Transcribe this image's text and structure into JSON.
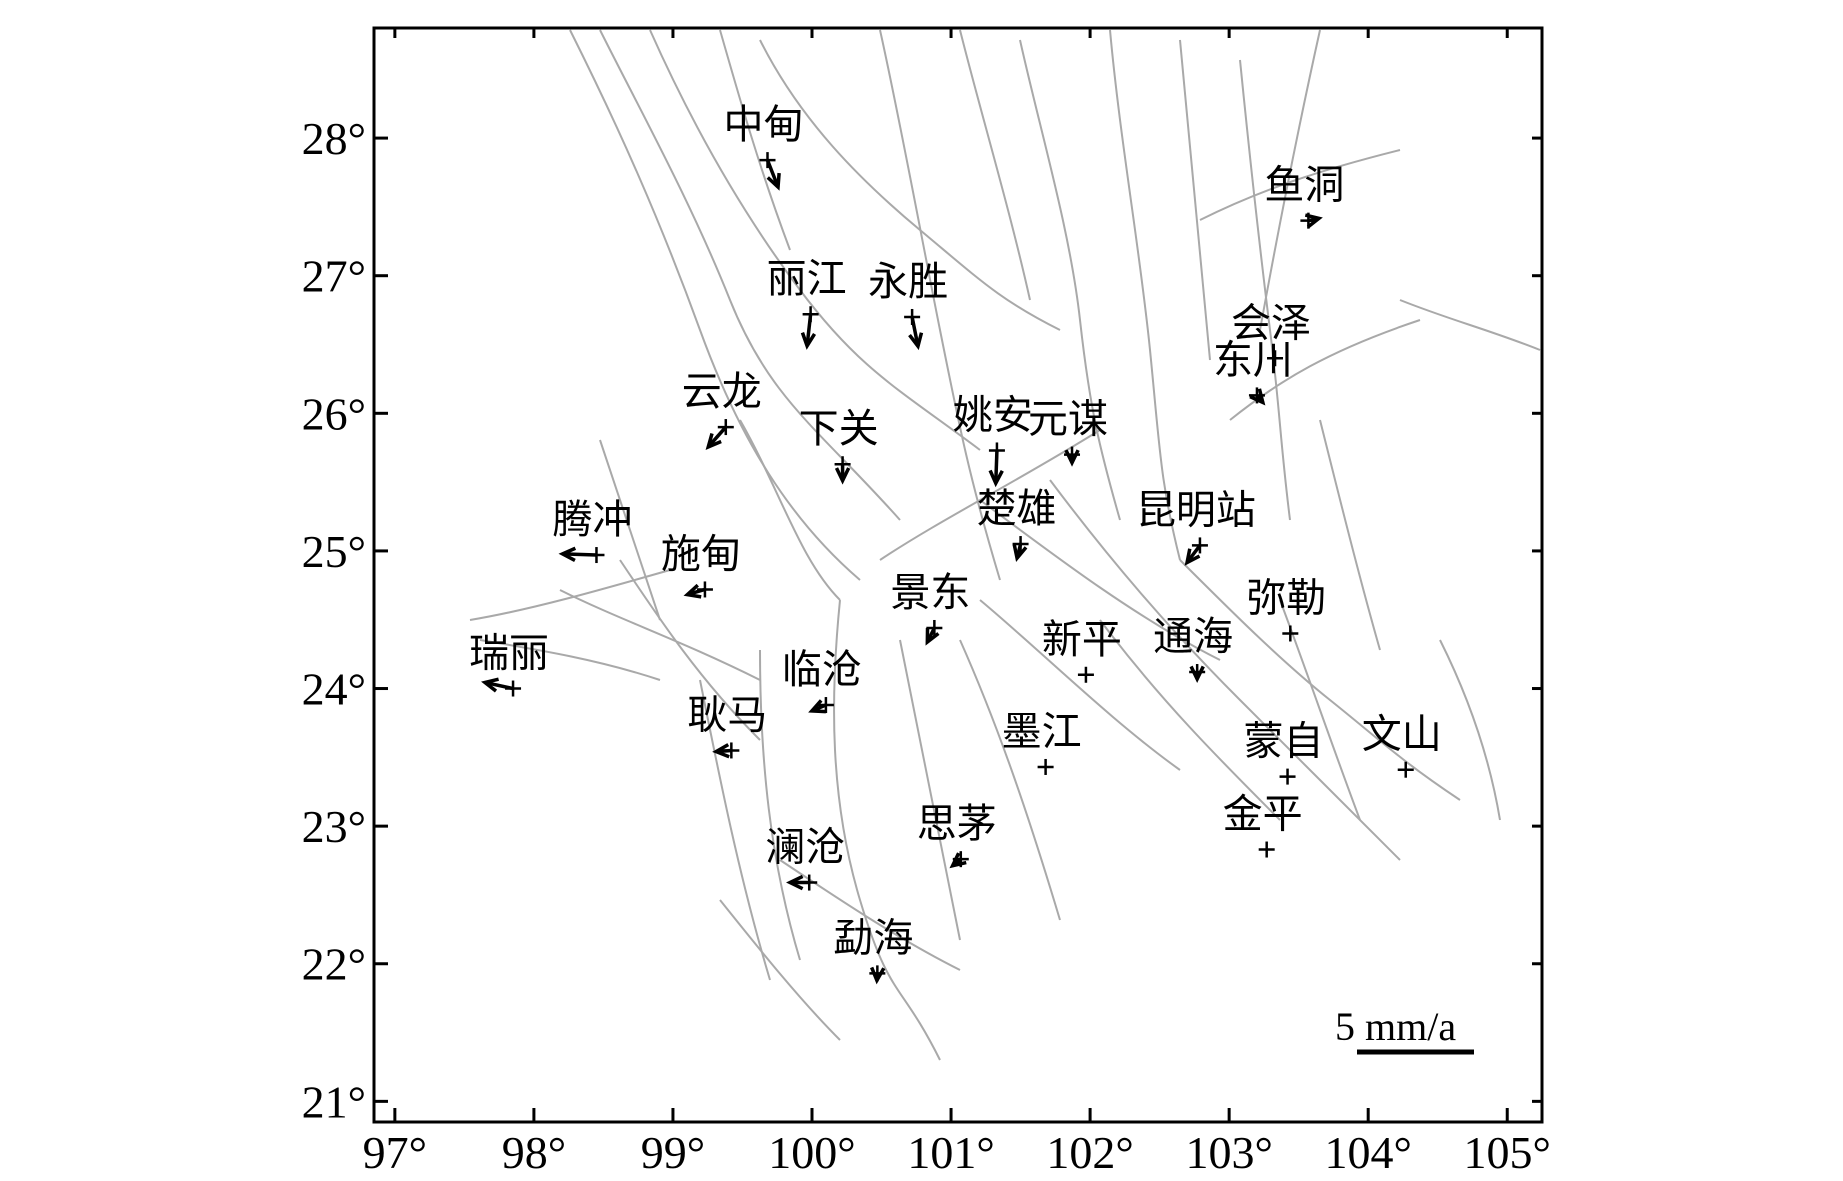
{
  "map": {
    "lon_range": [
      96.85,
      105.25
    ],
    "lat_range": [
      20.85,
      28.8
    ],
    "x_ticks": [
      {
        "value": 97,
        "label": "97°"
      },
      {
        "value": 98,
        "label": "98°"
      },
      {
        "value": 99,
        "label": "99°"
      },
      {
        "value": 100,
        "label": "100°"
      },
      {
        "value": 101,
        "label": "101°"
      },
      {
        "value": 102,
        "label": "102°"
      },
      {
        "value": 103,
        "label": "103°"
      },
      {
        "value": 104,
        "label": "104°"
      },
      {
        "value": 105,
        "label": "105°"
      }
    ],
    "y_ticks": [
      {
        "value": 21,
        "label": "21°"
      },
      {
        "value": 22,
        "label": "22°"
      },
      {
        "value": 23,
        "label": "23°"
      },
      {
        "value": 24,
        "label": "24°"
      },
      {
        "value": 25,
        "label": "25°"
      },
      {
        "value": 26,
        "label": "26°"
      },
      {
        "value": 27,
        "label": "27°"
      },
      {
        "value": 28,
        "label": "28°"
      }
    ],
    "scale": {
      "label": "5 mm/a",
      "value_mm_per_a": 5
    },
    "stations": [
      {
        "name": "中甸",
        "lon": 99.68,
        "lat": 27.84,
        "ve": 0.45,
        "vn": -1.15
      },
      {
        "name": "丽江",
        "lon": 99.99,
        "lat": 26.72,
        "ve": -0.15,
        "vn": -1.35
      },
      {
        "name": "永胜",
        "lon": 100.72,
        "lat": 26.7,
        "ve": 0.25,
        "vn": -1.25
      },
      {
        "name": "云龙",
        "lon": 99.38,
        "lat": 25.9,
        "ve": -0.75,
        "vn": -0.85
      },
      {
        "name": "下关",
        "lon": 100.22,
        "lat": 25.63,
        "ve": 0.0,
        "vn": -0.7
      },
      {
        "name": "姚安",
        "lon": 101.33,
        "lat": 25.73,
        "ve": -0.05,
        "vn": -1.4
      },
      {
        "name": "元谋",
        "lon": 101.87,
        "lat": 25.7,
        "ve": 0.0,
        "vn": -0.35
      },
      {
        "name": "腾冲",
        "lon": 98.45,
        "lat": 24.97,
        "ve": -1.45,
        "vn": 0.05
      },
      {
        "name": "施甸",
        "lon": 99.23,
        "lat": 24.72,
        "ve": -0.75,
        "vn": -0.22
      },
      {
        "name": "楚雄",
        "lon": 101.5,
        "lat": 25.05,
        "ve": -0.15,
        "vn": -0.6
      },
      {
        "name": "昆明站",
        "lon": 102.79,
        "lat": 25.04,
        "ve": -0.55,
        "vn": -0.73
      },
      {
        "name": "景东",
        "lon": 100.88,
        "lat": 24.44,
        "ve": -0.3,
        "vn": -0.6
      },
      {
        "name": "瑞丽",
        "lon": 97.85,
        "lat": 24.0,
        "ve": -1.2,
        "vn": 0.26
      },
      {
        "name": "新平",
        "lon": 101.97,
        "lat": 24.1,
        "ve": 0.0,
        "vn": 0.0
      },
      {
        "name": "通海",
        "lon": 102.77,
        "lat": 24.12,
        "ve": 0.0,
        "vn": -0.3
      },
      {
        "name": "弥勒",
        "lon": 103.44,
        "lat": 24.4,
        "ve": 0.15,
        "vn": -0.02
      },
      {
        "name": "临沧",
        "lon": 100.1,
        "lat": 23.88,
        "ve": -0.6,
        "vn": -0.25
      },
      {
        "name": "耿马",
        "lon": 99.42,
        "lat": 23.55,
        "ve": -0.65,
        "vn": -0.05
      },
      {
        "name": "墨江",
        "lon": 101.68,
        "lat": 23.43,
        "ve": 0.0,
        "vn": 0.0
      },
      {
        "name": "思茅",
        "lon": 101.07,
        "lat": 22.76,
        "ve": -0.35,
        "vn": -0.28
      },
      {
        "name": "澜沧",
        "lon": 99.98,
        "lat": 22.59,
        "ve": -0.82,
        "vn": 0.0
      },
      {
        "name": "勐海",
        "lon": 100.47,
        "lat": 21.93,
        "ve": -0.02,
        "vn": -0.3
      },
      {
        "name": "鱼洞",
        "lon": 103.57,
        "lat": 27.4,
        "ve": 0.45,
        "vn": 0.1
      },
      {
        "name": "会泽",
        "lon": 103.33,
        "lat": 26.4,
        "ve": 0.05,
        "vn": -0.15
      },
      {
        "name": "东川",
        "lon": 103.2,
        "lat": 26.13,
        "ve": 0.25,
        "vn": -0.3
      },
      {
        "name": "蒙自",
        "lon": 103.42,
        "lat": 23.36,
        "ve": 0.05,
        "vn": 0.0
      },
      {
        "name": "文山",
        "lon": 104.27,
        "lat": 23.41,
        "ve": 0.0,
        "vn": 0.0
      },
      {
        "name": "金平",
        "lon": 103.27,
        "lat": 22.83,
        "ve": 0.05,
        "vn": -0.05
      }
    ]
  }
}
